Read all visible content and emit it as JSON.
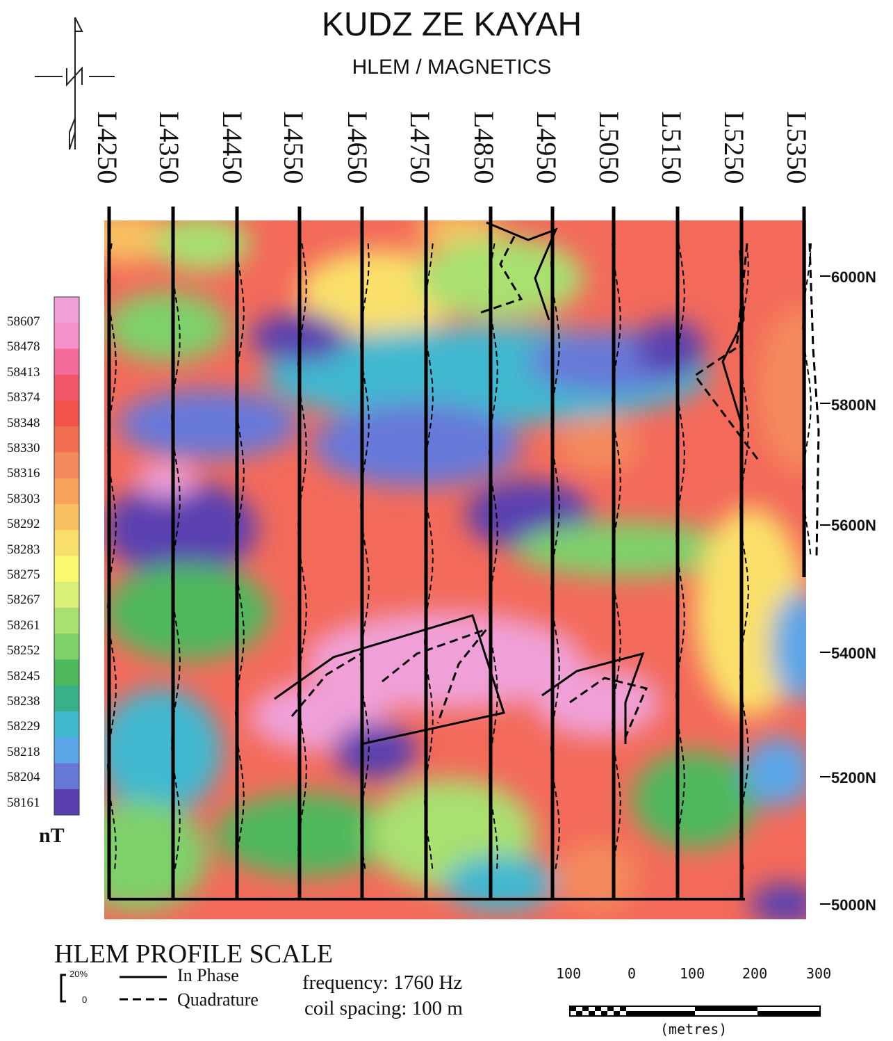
{
  "title": "KUDZ ZE KAYAH",
  "subtitle": "HLEM / MAGNETICS",
  "lines": [
    "L4250",
    "L4350",
    "L4450",
    "L4550",
    "L4650",
    "L4750",
    "L4850",
    "L4950",
    "L5050",
    "L5150",
    "L5250",
    "L5350"
  ],
  "northings": [
    "6000N",
    "5800N",
    "5600N",
    "5400N",
    "5200N",
    "5000N"
  ],
  "legend": {
    "values": [
      "58607",
      "58478",
      "58413",
      "58374",
      "58348",
      "58330",
      "58316",
      "58303",
      "58292",
      "58283",
      "58275",
      "58267",
      "58261",
      "58252",
      "58245",
      "58238",
      "58229",
      "58218",
      "58204",
      "58161"
    ],
    "unit": "nT",
    "colors": [
      "#f0a0d8",
      "#f590cc",
      "#f46a9a",
      "#f25468",
      "#f2544a",
      "#f36e52",
      "#f48a5c",
      "#f6a35e",
      "#f8c060",
      "#fae06a",
      "#fafa70",
      "#d8f078",
      "#a9e070",
      "#7ed06a",
      "#4fb85c",
      "#3ab08a",
      "#40b8d0",
      "#5aa6e8",
      "#6878d8",
      "#5a3fb0"
    ]
  },
  "scale": {
    "title": "HLEM PROFILE SCALE",
    "percent_top": "20%",
    "percent_bottom": "0",
    "in_phase_label": "In Phase",
    "quadrature_label": "Quadrature",
    "frequency": "frequency: 1760 Hz",
    "coil_spacing": "coil spacing: 100 m",
    "bar_ticks": [
      "100",
      "0",
      "100",
      "200",
      "300"
    ],
    "bar_unit": "(metres)"
  }
}
